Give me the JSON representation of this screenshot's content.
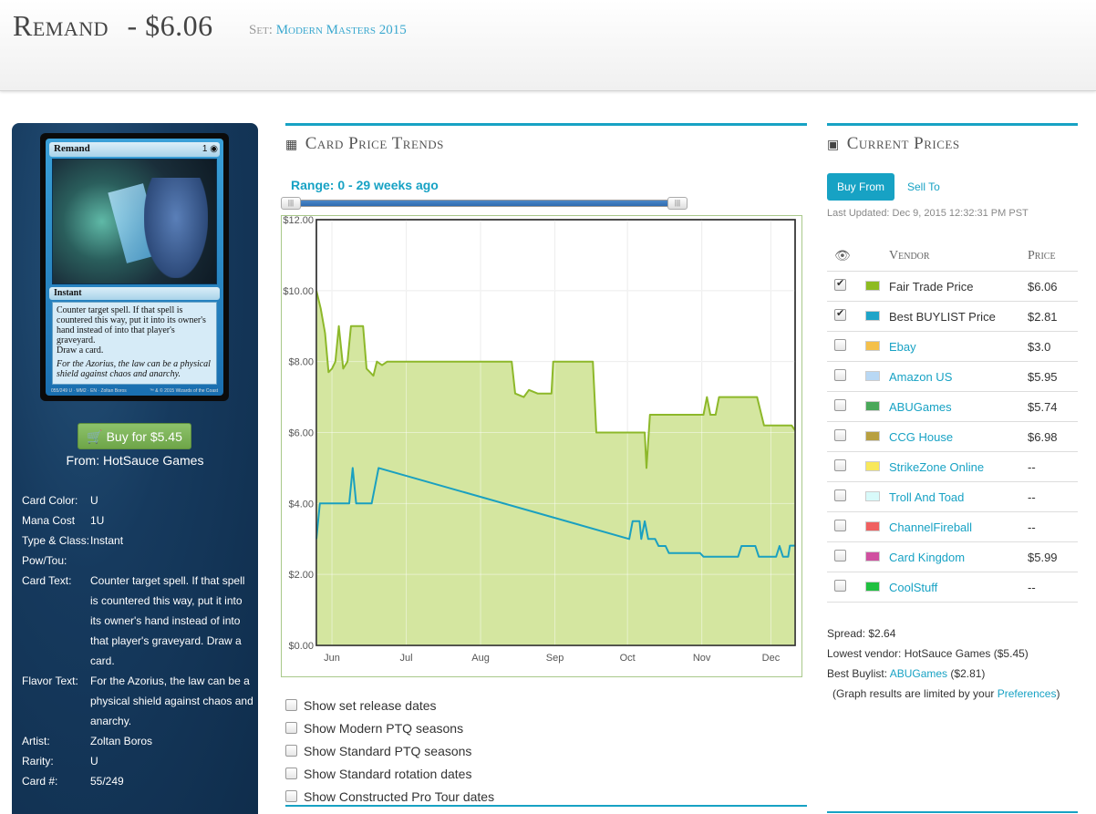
{
  "header": {
    "card_title": "Remand",
    "price": "- $6.06",
    "set_label": "Set:",
    "set_name": "Modern Masters 2015"
  },
  "card": {
    "name": "Remand",
    "mana": "1 ◉",
    "type_line": "Instant",
    "rules_text": "Counter target spell. If that spell is countered this way, put it into its owner's hand instead of into that player's graveyard.",
    "draw_text": "Draw a card.",
    "flavor_text": "For the Azorius, the law can be a physical shield against chaos and anarchy.",
    "footer_left": "055/249 U · MM2 · EN · Zoltan Boros",
    "footer_right": "™ & © 2015 Wizards of the Coast"
  },
  "buy": {
    "button_label": "Buy for $5.45",
    "from": "From: HotSauce Games"
  },
  "details": [
    {
      "label": "Card Color:",
      "value": "U"
    },
    {
      "label": "Mana Cost",
      "value": "1U"
    },
    {
      "label": "Type & Class:",
      "value": "Instant"
    },
    {
      "label": "Pow/Tou:",
      "value": ""
    },
    {
      "label": "Card Text:",
      "value": "Counter target spell. If that spell is countered this way, put it into its owner's hand instead of into that player's graveyard. Draw a card."
    },
    {
      "label": "Flavor Text:",
      "value": "For the Azorius, the law can be a physical shield against chaos and anarchy."
    },
    {
      "label": "Artist:",
      "value": "Zoltan Boros"
    },
    {
      "label": "Rarity:",
      "value": "U"
    },
    {
      "label": "Card #:",
      "value": "55/249"
    }
  ],
  "trends": {
    "title": "Card Price Trends",
    "range_label": "Range: 0 - 29 weeks ago",
    "options": [
      {
        "label": "Show set release dates",
        "checked": false
      },
      {
        "label": "Show Modern PTQ seasons",
        "checked": false
      },
      {
        "label": "Show Standard PTQ seasons",
        "checked": false
      },
      {
        "label": "Show Standard rotation dates",
        "checked": false
      },
      {
        "label": "Show Constructed Pro Tour dates",
        "checked": false
      }
    ]
  },
  "chart_data": {
    "type": "area",
    "title": "",
    "xlabel": "",
    "ylabel": "",
    "ylim": [
      0,
      12
    ],
    "y_ticks": [
      "$0.00",
      "$2.00",
      "$4.00",
      "$6.00",
      "$8.00",
      "$10.00",
      "$12.00"
    ],
    "x_ticks": [
      "Jun",
      "Jul",
      "Aug",
      "Sep",
      "Oct",
      "Nov",
      "Dec"
    ],
    "x_tick_weeks": [
      0.9,
      5.2,
      9.5,
      13.8,
      18.0,
      22.3,
      26.3
    ],
    "xlim": [
      0,
      27.7
    ],
    "grid": true,
    "series": [
      {
        "name": "Fair Trade Price",
        "color": "#8db82a",
        "fill": "#d4e6a0",
        "points": [
          [
            0,
            10.0
          ],
          [
            0.25,
            9.5
          ],
          [
            0.5,
            8.8
          ],
          [
            0.7,
            7.7
          ],
          [
            0.9,
            7.8
          ],
          [
            1.1,
            8.0
          ],
          [
            1.3,
            9.0
          ],
          [
            1.55,
            7.8
          ],
          [
            1.8,
            8.0
          ],
          [
            2.0,
            9.0
          ],
          [
            2.7,
            9.0
          ],
          [
            2.9,
            7.8
          ],
          [
            3.1,
            7.7
          ],
          [
            3.3,
            7.6
          ],
          [
            3.5,
            8.0
          ],
          [
            3.8,
            7.9
          ],
          [
            4.1,
            8.0
          ],
          [
            11.3,
            8.0
          ],
          [
            11.5,
            7.1
          ],
          [
            12.0,
            7.0
          ],
          [
            12.3,
            7.2
          ],
          [
            12.8,
            7.1
          ],
          [
            13.6,
            7.1
          ],
          [
            13.7,
            8.0
          ],
          [
            16.0,
            8.0
          ],
          [
            16.2,
            6.0
          ],
          [
            19.0,
            6.0
          ],
          [
            19.1,
            5.0
          ],
          [
            19.3,
            6.5
          ],
          [
            22.4,
            6.5
          ],
          [
            22.6,
            7.0
          ],
          [
            22.8,
            6.5
          ],
          [
            23.1,
            6.5
          ],
          [
            23.3,
            7.0
          ],
          [
            25.5,
            7.0
          ],
          [
            25.9,
            6.2
          ],
          [
            27.5,
            6.2
          ],
          [
            27.7,
            6.06
          ]
        ]
      },
      {
        "name": "Best BUYLIST Price",
        "color": "#1aa0c0",
        "points": [
          [
            0,
            3.0
          ],
          [
            0.2,
            4.0
          ],
          [
            1.9,
            4.0
          ],
          [
            2.1,
            5.0
          ],
          [
            2.3,
            4.0
          ],
          [
            3.2,
            4.0
          ],
          [
            3.6,
            5.0
          ],
          [
            18.1,
            3.0
          ],
          [
            18.3,
            3.5
          ],
          [
            18.7,
            3.5
          ],
          [
            18.8,
            3.0
          ],
          [
            19.0,
            3.5
          ],
          [
            19.2,
            3.0
          ],
          [
            19.6,
            3.0
          ],
          [
            19.8,
            2.8
          ],
          [
            20.2,
            2.8
          ],
          [
            20.4,
            2.6
          ],
          [
            22.2,
            2.6
          ],
          [
            22.4,
            2.5
          ],
          [
            24.4,
            2.5
          ],
          [
            24.6,
            2.8
          ],
          [
            25.4,
            2.8
          ],
          [
            25.6,
            2.5
          ],
          [
            26.6,
            2.5
          ],
          [
            26.8,
            2.8
          ],
          [
            27.0,
            2.5
          ],
          [
            27.3,
            2.5
          ],
          [
            27.4,
            2.81
          ],
          [
            27.7,
            2.81
          ]
        ]
      }
    ]
  },
  "prices": {
    "title": "Current Prices",
    "tab_buy": "Buy From",
    "tab_sell": "Sell To",
    "last_updated": "Last Updated: Dec 9, 2015 12:32:31 PM PST",
    "col_eye": "👁",
    "col_vendor": "Vendor",
    "col_price": "Price",
    "vendors": [
      {
        "name": "Fair Trade Price",
        "price": "$6.06",
        "color": "#8dbb21",
        "checked": true,
        "link": false
      },
      {
        "name": "Best BUYLIST Price",
        "price": "$2.81",
        "color": "#1fa4c8",
        "checked": true,
        "link": false
      },
      {
        "name": "Ebay",
        "price": "$3.0",
        "color": "#f4c04a",
        "checked": false,
        "link": true
      },
      {
        "name": "Amazon US",
        "price": "$5.95",
        "color": "#b8d8f4",
        "checked": false,
        "link": true
      },
      {
        "name": "ABUGames",
        "price": "$5.74",
        "color": "#4aa85a",
        "checked": false,
        "link": true
      },
      {
        "name": "CCG House",
        "price": "$6.98",
        "color": "#b8a040",
        "checked": false,
        "link": true
      },
      {
        "name": "StrikeZone Online",
        "price": "--",
        "color": "#f8e85a",
        "checked": false,
        "link": true
      },
      {
        "name": "Troll And Toad",
        "price": "--",
        "color": "#d8fafa",
        "checked": false,
        "link": true
      },
      {
        "name": "ChannelFireball",
        "price": "--",
        "color": "#f06060",
        "checked": false,
        "link": true
      },
      {
        "name": "Card Kingdom",
        "price": "$5.99",
        "color": "#d050a0",
        "checked": false,
        "link": true
      },
      {
        "name": "CoolStuff",
        "price": "--",
        "color": "#20c040",
        "checked": false,
        "link": true
      }
    ],
    "spread": "Spread: $2.64",
    "lowest_vendor": "Lowest vendor: HotSauce Games ($5.45)",
    "best_buylist_label": "Best Buylist:",
    "best_buylist_vendor": "ABUGames",
    "best_buylist_price": "($2.81)",
    "graph_note_prefix": "(Graph results are limited by your",
    "graph_note_link": "Preferences",
    "graph_note_suffix": ")"
  }
}
